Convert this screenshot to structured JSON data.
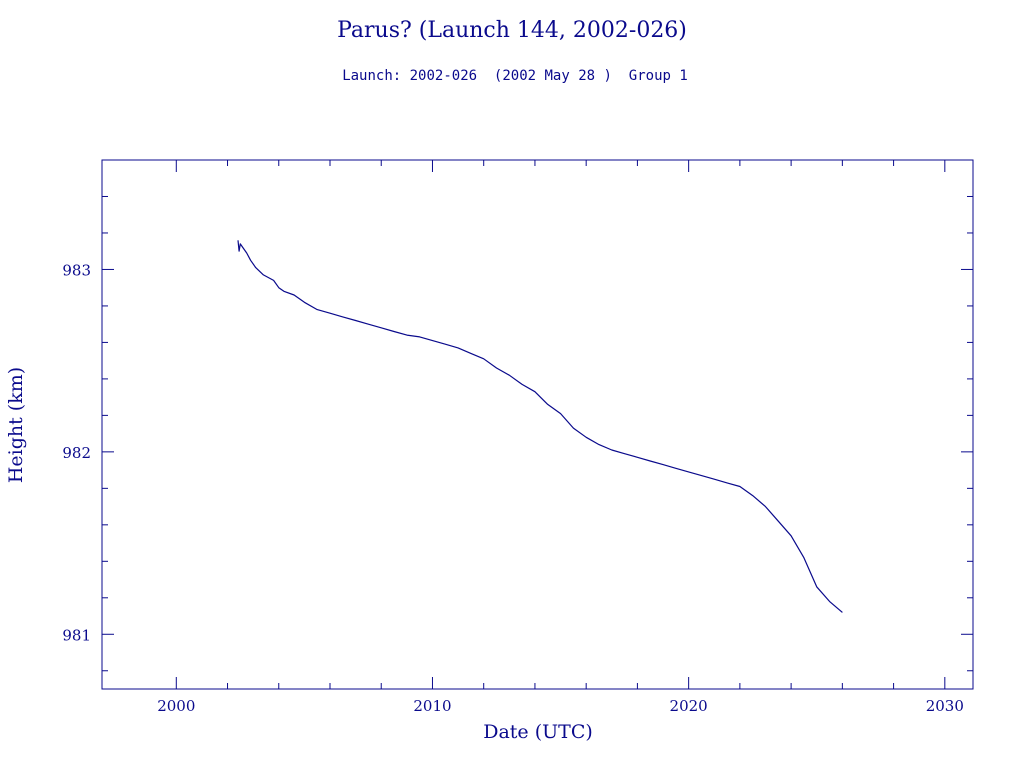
{
  "chart_data": {
    "type": "line",
    "title": "Parus? (Launch 144, 2002-026)",
    "subtitle": "Launch: 2002-026  (2002 May 28 )  Group 1",
    "xlabel": "Date (UTC)",
    "ylabel": "Height (km)",
    "xlim": [
      1997.1,
      2031.1
    ],
    "ylim": [
      980.7,
      983.6
    ],
    "x_ticks": [
      2000,
      2010,
      2020,
      2030
    ],
    "x_tick_labels": [
      "2000",
      "2010",
      "2020",
      "2030"
    ],
    "x_minor_ticks": [
      2002,
      2004,
      2006,
      2008,
      2012,
      2014,
      2016,
      2018,
      2022,
      2024,
      2026,
      2028
    ],
    "y_ticks": [
      981,
      982,
      983
    ],
    "y_tick_labels": [
      "981",
      "982",
      "983"
    ],
    "y_minor_ticks": [
      980.8,
      981.2,
      981.4,
      981.6,
      981.8,
      982.2,
      982.4,
      982.6,
      982.8,
      983.2,
      983.4
    ],
    "grid": false,
    "color": "#0a0a8c",
    "series": [
      {
        "x": [
          2002.41,
          2002.45,
          2002.5,
          2002.6,
          2002.75,
          2002.9,
          2003.1,
          2003.4,
          2003.8,
          2004.0,
          2004.2,
          2004.6,
          2005.0,
          2005.5,
          2006.0,
          2006.5,
          2007.0,
          2007.5,
          2008.0,
          2008.5,
          2009.0,
          2009.5,
          2010.0,
          2010.5,
          2011.0,
          2011.5,
          2012.0,
          2012.5,
          2013.0,
          2013.5,
          2014.0,
          2014.5,
          2015.0,
          2015.5,
          2016.0,
          2016.5,
          2017.0,
          2017.5,
          2018.0,
          2018.5,
          2019.0,
          2019.5,
          2020.0,
          2020.5,
          2021.0,
          2021.5,
          2022.0,
          2022.5,
          2023.0,
          2023.5,
          2024.0,
          2024.5,
          2025.0,
          2025.5,
          2026.0
        ],
        "y": [
          983.16,
          983.1,
          983.14,
          983.12,
          983.09,
          983.05,
          983.01,
          982.97,
          982.94,
          982.9,
          982.88,
          982.86,
          982.82,
          982.78,
          982.76,
          982.74,
          982.72,
          982.7,
          982.68,
          982.66,
          982.64,
          982.63,
          982.61,
          982.59,
          982.57,
          982.54,
          982.51,
          982.46,
          982.42,
          982.37,
          982.33,
          982.26,
          982.21,
          982.13,
          982.08,
          982.04,
          982.01,
          981.99,
          981.97,
          981.95,
          981.93,
          981.91,
          981.89,
          981.87,
          981.85,
          981.83,
          981.81,
          981.76,
          981.7,
          981.62,
          981.54,
          981.42,
          981.26,
          981.18,
          981.12
        ]
      }
    ]
  }
}
